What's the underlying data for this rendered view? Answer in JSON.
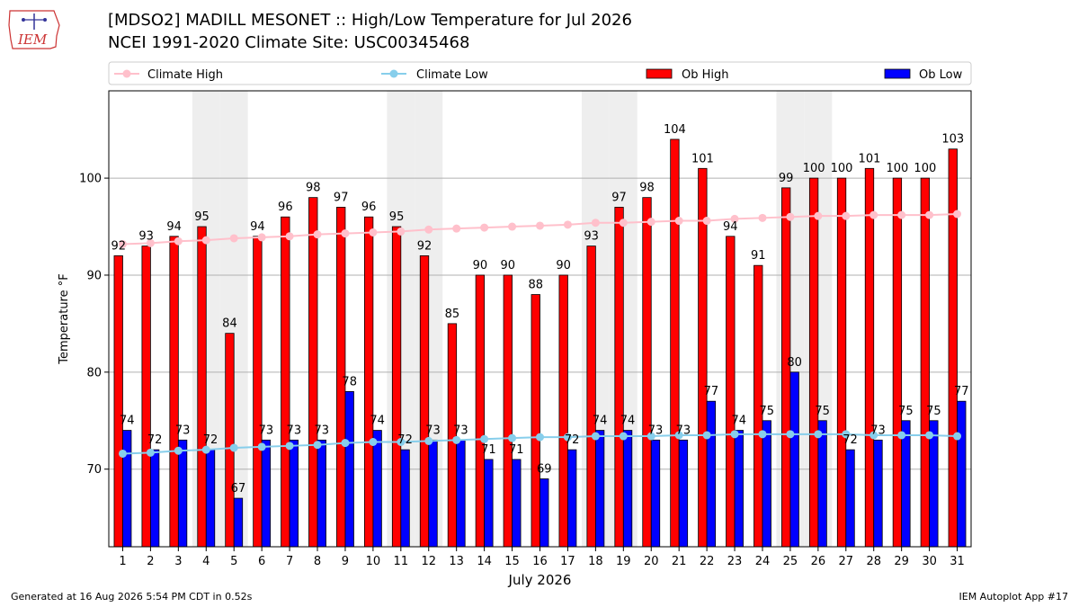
{
  "header": {
    "title_line1": "[MDSO2] MADILL MESONET :: High/Low Temperature for Jul 2026",
    "title_line2": "NCEI 1991-2020 Climate Site: USC00345468",
    "logo_text": "IEM"
  },
  "footer": {
    "generated": "Generated at 16 Aug 2026 5:54 PM CDT in 0.52s",
    "app": "IEM Autoplot App #17"
  },
  "colors": {
    "ob_high": "#ff0000",
    "ob_low": "#0000ff",
    "climate_high": "#ffc0cb",
    "climate_low": "#87ceeb",
    "weekend_shade": "#eeeeee"
  },
  "chart_data": {
    "type": "bar",
    "xlabel": "July 2026",
    "ylabel": "Temperature °F",
    "ylim": [
      62,
      109
    ],
    "yticks": [
      70,
      80,
      90,
      100
    ],
    "grid": true,
    "legend_position": "top",
    "shaded_days": [
      4,
      5,
      11,
      12,
      18,
      19,
      25,
      26
    ],
    "categories": [
      "1",
      "2",
      "3",
      "4",
      "5",
      "6",
      "7",
      "8",
      "9",
      "10",
      "11",
      "12",
      "13",
      "14",
      "15",
      "16",
      "17",
      "18",
      "19",
      "20",
      "21",
      "22",
      "23",
      "24",
      "25",
      "26",
      "27",
      "28",
      "29",
      "30",
      "31"
    ],
    "series": [
      {
        "name": "Climate High",
        "kind": "line",
        "values": [
          93.2,
          93.3,
          93.5,
          93.6,
          93.8,
          93.9,
          94.0,
          94.2,
          94.3,
          94.4,
          94.5,
          94.7,
          94.8,
          94.9,
          95.0,
          95.1,
          95.2,
          95.4,
          95.4,
          95.5,
          95.6,
          95.6,
          95.8,
          95.9,
          96.0,
          96.1,
          96.1,
          96.2,
          96.2,
          96.2,
          96.3
        ]
      },
      {
        "name": "Climate Low",
        "kind": "line",
        "values": [
          71.6,
          71.7,
          71.9,
          72.0,
          72.2,
          72.3,
          72.4,
          72.5,
          72.7,
          72.8,
          72.8,
          72.9,
          73.0,
          73.1,
          73.2,
          73.3,
          73.3,
          73.4,
          73.4,
          73.4,
          73.5,
          73.5,
          73.6,
          73.6,
          73.6,
          73.6,
          73.6,
          73.5,
          73.5,
          73.5,
          73.4
        ]
      },
      {
        "name": "Ob High",
        "kind": "bar",
        "values": [
          92,
          93,
          94,
          95,
          84,
          94,
          96,
          98,
          97,
          96,
          95,
          92,
          85,
          90,
          90,
          88,
          90,
          93,
          97,
          98,
          104,
          101,
          94,
          91,
          99,
          100,
          100,
          101,
          100,
          100,
          103
        ]
      },
      {
        "name": "Ob Low",
        "kind": "bar",
        "values": [
          74,
          72,
          73,
          72,
          67,
          73,
          73,
          73,
          78,
          74,
          72,
          73,
          73,
          71,
          71,
          69,
          72,
          74,
          74,
          73,
          73,
          77,
          74,
          75,
          80,
          75,
          72,
          73,
          75,
          75,
          77
        ]
      }
    ]
  }
}
